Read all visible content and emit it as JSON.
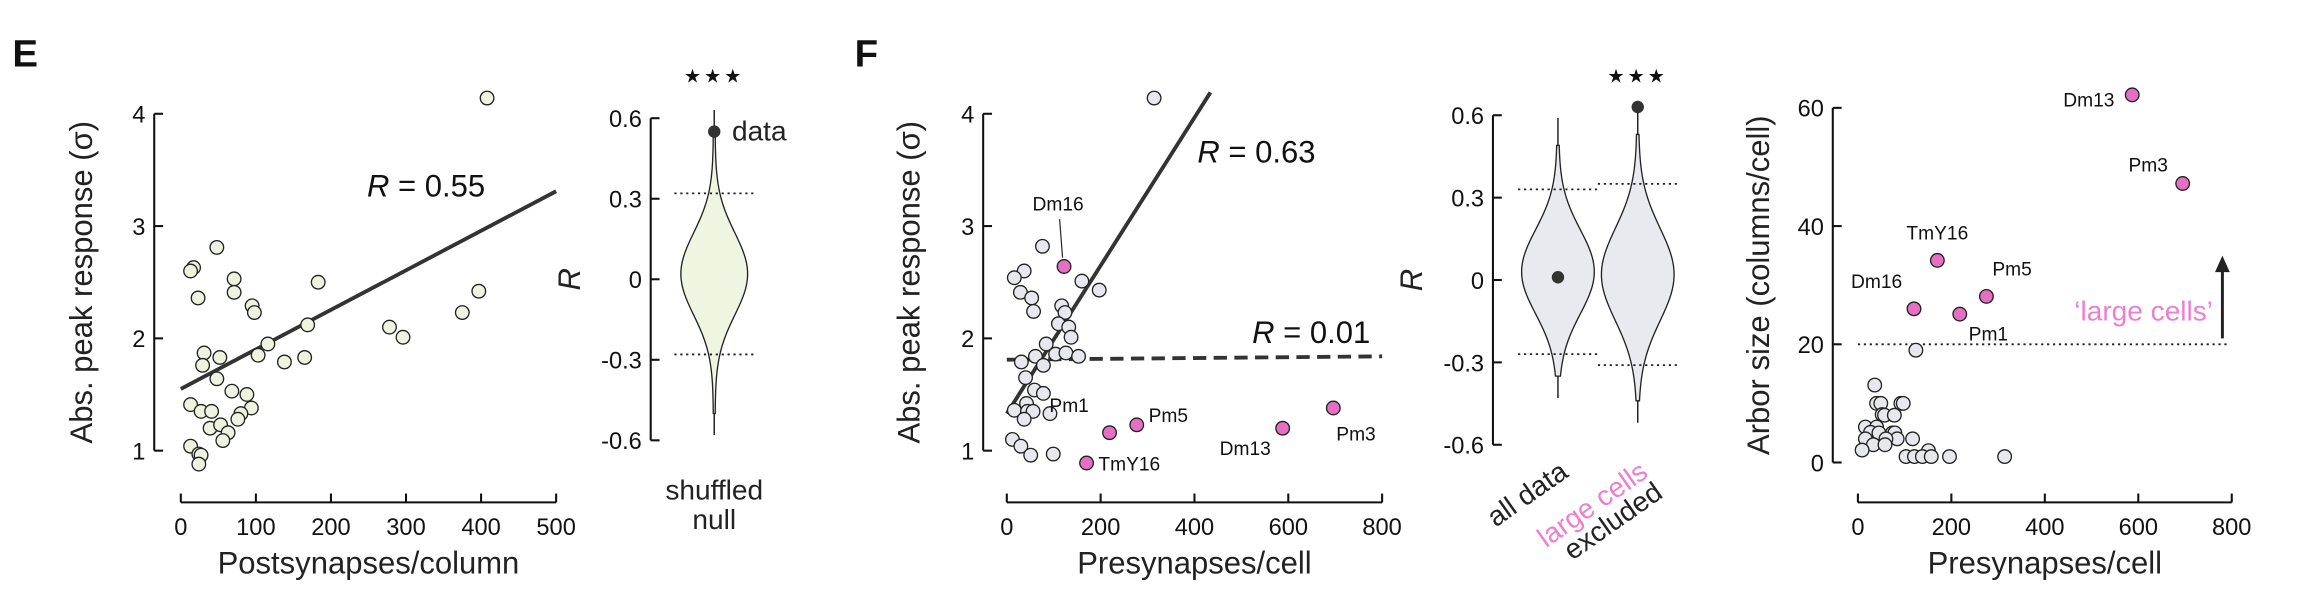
{
  "panels": {
    "left": "E",
    "right": "F"
  },
  "colors": {
    "marker_green": "#edf3df",
    "marker_gray": "#e6e8ee",
    "large_cell_pink": "#e46fc3",
    "pink_text": "#ee7fcf",
    "fit_line": "#333333",
    "violin_green": "#eef5e0",
    "violin_gray": "#e9eaf0"
  },
  "chart_data": [
    {
      "type": "scatter",
      "xlabel": "Postsynapses/column",
      "ylabel": "Abs. peak response (σ)",
      "xlim": [
        0,
        500
      ],
      "ylim": [
        1,
        4
      ],
      "xticks": [
        "0",
        "100",
        "200",
        "300",
        "400",
        "500"
      ],
      "yticks": [
        "1",
        "2",
        "3",
        "4"
      ],
      "points": [
        [
          408,
          4.14
        ],
        [
          48,
          2.81
        ],
        [
          17,
          2.63
        ],
        [
          13,
          2.6
        ],
        [
          71,
          2.53
        ],
        [
          71,
          2.41
        ],
        [
          23,
          2.36
        ],
        [
          183,
          2.5
        ],
        [
          95,
          2.29
        ],
        [
          98,
          2.23
        ],
        [
          397,
          2.42
        ],
        [
          375,
          2.23
        ],
        [
          278,
          2.1
        ],
        [
          296,
          2.01
        ],
        [
          169,
          2.12
        ],
        [
          116,
          1.95
        ],
        [
          103,
          1.85
        ],
        [
          138,
          1.79
        ],
        [
          165,
          1.83
        ],
        [
          31,
          1.87
        ],
        [
          52,
          1.83
        ],
        [
          29,
          1.76
        ],
        [
          48,
          1.64
        ],
        [
          68,
          1.53
        ],
        [
          88,
          1.5
        ],
        [
          13,
          1.41
        ],
        [
          27,
          1.35
        ],
        [
          41,
          1.35
        ],
        [
          94,
          1.38
        ],
        [
          80,
          1.33
        ],
        [
          76,
          1.28
        ],
        [
          39,
          1.2
        ],
        [
          53,
          1.23
        ],
        [
          63,
          1.16
        ],
        [
          56,
          1.09
        ],
        [
          13,
          1.04
        ],
        [
          24,
          0.97
        ],
        [
          27,
          0.96
        ],
        [
          24,
          0.88
        ]
      ],
      "fits": [
        {
          "x": [
            0,
            500
          ],
          "y": [
            1.55,
            3.31
          ],
          "style": "solid",
          "r_var": "R",
          "r_value": " = 0.55"
        }
      ]
    },
    {
      "type": "violin",
      "ylabel": "R",
      "ylim": [
        -0.6,
        0.6
      ],
      "yticks": [
        "-0.6",
        "-0.3",
        "0",
        "0.3",
        "0.6"
      ],
      "violins": [
        {
          "label": "shuffled",
          "label2": "null",
          "range": [
            -0.58,
            0.63
          ],
          "percentiles": [
            -0.28,
            0.32
          ],
          "observed": 0.55,
          "observed_label": "data",
          "significance": "★★★"
        }
      ]
    },
    {
      "type": "scatter",
      "xlabel": "Presynapses/cell",
      "ylabel": "Abs. peak response (σ)",
      "xlim": [
        0,
        800
      ],
      "ylim": [
        1,
        4
      ],
      "xticks": [
        "0",
        "200",
        "400",
        "600",
        "800"
      ],
      "yticks": [
        "1",
        "2",
        "3",
        "4"
      ],
      "points": [
        [
          314,
          4.14
        ],
        [
          76,
          2.82
        ],
        [
          37,
          2.6
        ],
        [
          16,
          2.54
        ],
        [
          29,
          2.41
        ],
        [
          53,
          2.36
        ],
        [
          57,
          2.24
        ],
        [
          160,
          2.51
        ],
        [
          197,
          2.43
        ],
        [
          117,
          2.29
        ],
        [
          124,
          2.23
        ],
        [
          110,
          2.13
        ],
        [
          132,
          2.1
        ],
        [
          137,
          2.01
        ],
        [
          84,
          1.95
        ],
        [
          61,
          1.84
        ],
        [
          31,
          1.79
        ],
        [
          78,
          1.76
        ],
        [
          104,
          1.86
        ],
        [
          126,
          1.87
        ],
        [
          153,
          1.84
        ],
        [
          40,
          1.65
        ],
        [
          59,
          1.54
        ],
        [
          78,
          1.51
        ],
        [
          42,
          1.42
        ],
        [
          16,
          1.36
        ],
        [
          44,
          1.35
        ],
        [
          56,
          1.35
        ],
        [
          92,
          1.33
        ],
        [
          37,
          1.28
        ],
        [
          12,
          1.1
        ],
        [
          30,
          1.04
        ],
        [
          51,
          0.96
        ],
        [
          99,
          0.97
        ]
      ],
      "large_cells": [
        {
          "name": "Dm16",
          "x": 122,
          "y": 2.64
        },
        {
          "name": "Pm1",
          "x": 219,
          "y": 1.16
        },
        {
          "name": "Pm5",
          "x": 277,
          "y": 1.23
        },
        {
          "name": "TmY16",
          "x": 170,
          "y": 0.89
        },
        {
          "name": "Dm13",
          "x": 588,
          "y": 1.2
        },
        {
          "name": "Pm3",
          "x": 696,
          "y": 1.38
        }
      ],
      "fits": [
        {
          "x": [
            0,
            434
          ],
          "y": [
            1.33,
            4.19
          ],
          "style": "solid",
          "r_var": "R",
          "r_value": " = 0.63"
        },
        {
          "x": [
            0,
            800
          ],
          "y": [
            1.81,
            1.84
          ],
          "style": "dashed",
          "r_var": "R",
          "r_value": " = 0.01"
        }
      ]
    },
    {
      "type": "violin",
      "ylabel": "R",
      "ylim": [
        -0.6,
        0.6
      ],
      "yticks": [
        "-0.6",
        "-0.3",
        "0",
        "0.3",
        "0.6"
      ],
      "violins": [
        {
          "label": "all data",
          "label2": "",
          "range": [
            -0.43,
            0.59
          ],
          "percentiles": [
            -0.27,
            0.33
          ],
          "observed": 0.01,
          "significance": ""
        },
        {
          "label": "large cells",
          "label2": "excluded",
          "range": [
            -0.52,
            0.63
          ],
          "percentiles": [
            -0.31,
            0.35
          ],
          "observed": 0.63,
          "significance": "★★★"
        }
      ]
    },
    {
      "type": "scatter",
      "xlabel": "Presynapses/cell",
      "ylabel": "Arbor size (columns/cell)",
      "xlim": [
        0,
        800
      ],
      "ylim": [
        0,
        60
      ],
      "xticks": [
        "0",
        "200",
        "400",
        "600",
        "800"
      ],
      "yticks": [
        "0",
        "20",
        "40",
        "60"
      ],
      "points": [
        [
          124,
          19
        ],
        [
          36,
          13.1
        ],
        [
          40,
          10
        ],
        [
          49,
          10
        ],
        [
          92,
          10
        ],
        [
          97,
          10
        ],
        [
          52,
          8.1
        ],
        [
          57,
          8
        ],
        [
          78,
          8
        ],
        [
          16,
          6
        ],
        [
          40,
          6
        ],
        [
          27,
          5.1
        ],
        [
          45,
          5
        ],
        [
          74,
          5
        ],
        [
          79,
          5
        ],
        [
          16,
          4
        ],
        [
          117,
          4
        ],
        [
          84,
          4
        ],
        [
          60,
          4
        ],
        [
          33,
          3
        ],
        [
          58,
          3
        ],
        [
          9,
          2.1
        ],
        [
          151,
          2
        ],
        [
          103,
          1
        ],
        [
          121,
          1
        ],
        [
          138,
          1
        ],
        [
          157,
          1
        ],
        [
          196,
          1
        ],
        [
          314,
          1
        ]
      ],
      "large_cells": [
        {
          "name": "Dm13",
          "x": 587,
          "y": 62.2
        },
        {
          "name": "Pm3",
          "x": 695,
          "y": 47.2
        },
        {
          "name": "TmY16",
          "x": 170,
          "y": 34.2
        },
        {
          "name": "Pm5",
          "x": 275,
          "y": 28.1
        },
        {
          "name": "Dm16",
          "x": 120,
          "y": 26.0
        },
        {
          "name": "Pm1",
          "x": 218,
          "y": 25.1
        }
      ],
      "threshold": {
        "y": 20,
        "label": "‘large cells’"
      }
    }
  ]
}
